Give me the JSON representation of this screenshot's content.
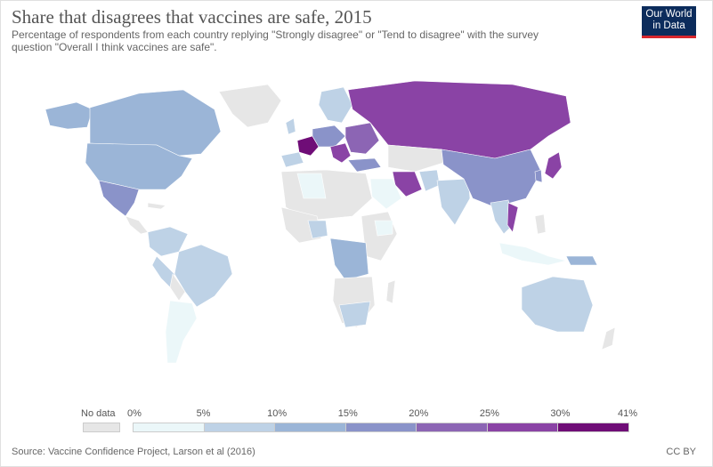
{
  "header": {
    "title": "Share that disagrees that vaccines are safe, 2015",
    "subtitle": "Percentage of respondents from each country replying \"Strongly disagree\" or \"Tend to disagree\" with the survey question \"Overall I think vaccines are safe\".",
    "logo_line1": "Our World",
    "logo_line2": "in Data"
  },
  "legend": {
    "no_data_label": "No data",
    "no_data_color": "#e6e6e6",
    "bins": [
      {
        "label": "0%",
        "from": 0,
        "to": 5,
        "color": "#ebf7f9"
      },
      {
        "label": "5%",
        "from": 5,
        "to": 10,
        "color": "#bed2e6"
      },
      {
        "label": "10%",
        "from": 10,
        "to": 15,
        "color": "#9bb5d7"
      },
      {
        "label": "15%",
        "from": 15,
        "to": 20,
        "color": "#8a93c9"
      },
      {
        "label": "20%",
        "from": 20,
        "to": 25,
        "color": "#8c65b4"
      },
      {
        "label": "25%",
        "from": 25,
        "to": 30,
        "color": "#8a43a5"
      },
      {
        "label": "30%",
        "from": 30,
        "to": 41,
        "color": "#6f0d77"
      }
    ],
    "max_label": "41%"
  },
  "footer": {
    "source": "Source: Vaccine Confidence Project, Larson et al (2016)",
    "license": "CC BY"
  }
}
